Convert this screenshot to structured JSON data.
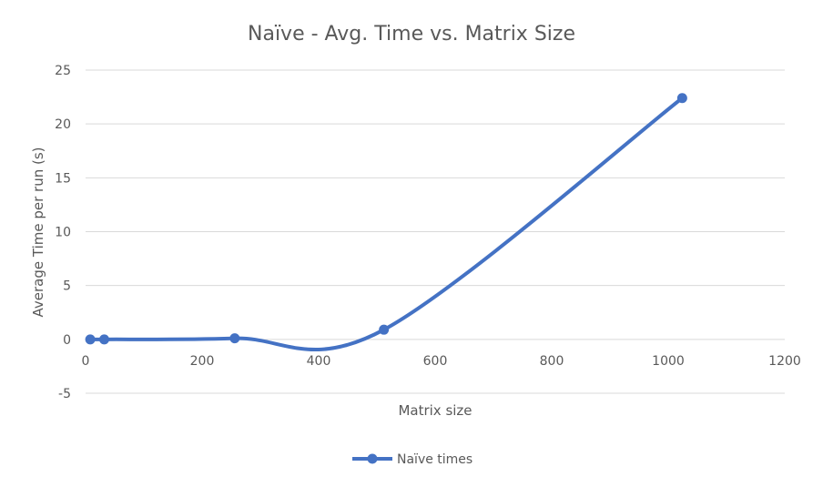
{
  "chart_data": {
    "type": "scatter",
    "title": "Naïve - Avg. Time vs. Matrix Size",
    "xlabel": "Matrix size",
    "ylabel": "Average Time per run (s)",
    "xlim": [
      0,
      1200
    ],
    "ylim": [
      -5,
      25
    ],
    "x_ticks": [
      "0",
      "200",
      "400",
      "600",
      "800",
      "1000",
      "1200"
    ],
    "y_ticks": [
      "-5",
      "0",
      "5",
      "10",
      "15",
      "20",
      "25"
    ],
    "grid": true,
    "legend_position": "bottom",
    "smoothed_line": true,
    "series": [
      {
        "name": "Naïve times",
        "color": "#4472c4",
        "points": [
          {
            "x": 8,
            "y": 0.0
          },
          {
            "x": 32,
            "y": 0.0
          },
          {
            "x": 256,
            "y": 0.1
          },
          {
            "x": 512,
            "y": 0.9
          },
          {
            "x": 1024,
            "y": 22.4
          }
        ]
      }
    ]
  }
}
